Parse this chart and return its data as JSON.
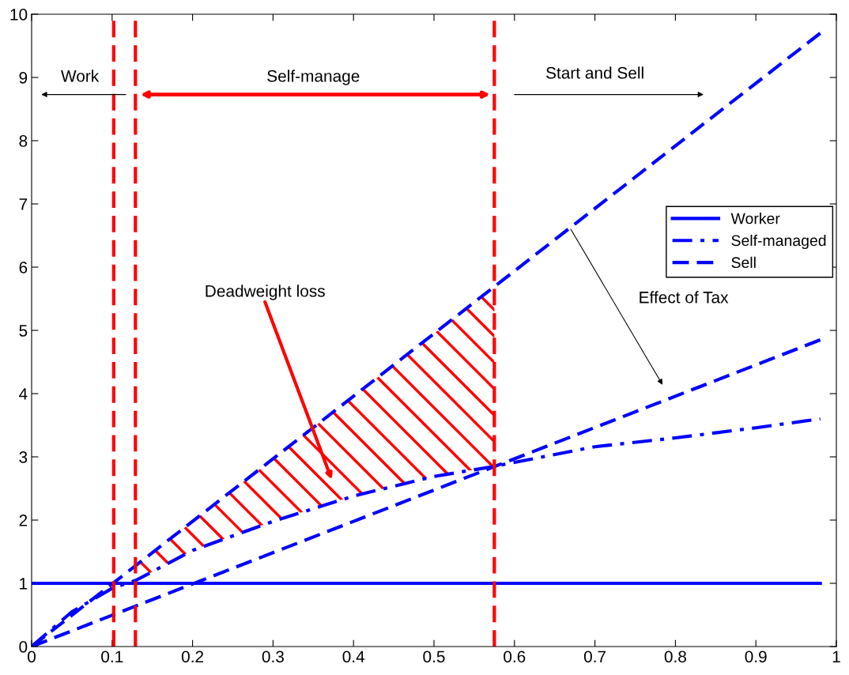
{
  "chart_data": {
    "type": "line",
    "xlim": [
      0,
      1
    ],
    "ylim": [
      0,
      10
    ],
    "xticks": [
      0,
      0.1,
      0.2,
      0.3,
      0.4,
      0.5,
      0.6,
      0.7,
      0.8,
      0.9,
      1
    ],
    "yticks": [
      0,
      1,
      2,
      3,
      4,
      5,
      6,
      7,
      8,
      9,
      10
    ],
    "grid": false,
    "legend": "right",
    "series": [
      {
        "name": "Worker",
        "color": "#0000ff",
        "line_style": "solid",
        "x": [
          0,
          0.98
        ],
        "values": [
          1,
          1
        ]
      },
      {
        "name": "Self-managed",
        "color": "#0000ff",
        "line_style": "dashdot",
        "x": [
          0,
          0.05,
          0.1,
          0.13,
          0.2,
          0.3,
          0.4,
          0.5,
          0.575,
          0.7,
          0.8,
          0.9,
          0.98
        ],
        "values": [
          0,
          0.55,
          0.92,
          1.05,
          1.52,
          1.98,
          2.38,
          2.69,
          2.85,
          3.16,
          3.3,
          3.46,
          3.6
        ]
      },
      {
        "name": "Sell",
        "color": "#0000ff",
        "line_style": "dashed",
        "x": [
          0,
          0.98
        ],
        "values": [
          0,
          9.7
        ]
      },
      {
        "color": "#0000ff",
        "line_style": "dashed",
        "x": [
          0,
          0.98
        ],
        "values": [
          0,
          4.85
        ]
      }
    ],
    "ref_lines": [
      {
        "axis": "x",
        "value": 0.102,
        "color": "#ff0000",
        "line_style": "dashed"
      },
      {
        "axis": "x",
        "value": 0.129,
        "color": "#ff0000",
        "line_style": "dashed"
      },
      {
        "axis": "x",
        "value": 0.575,
        "color": "#ff0000",
        "line_style": "dashed"
      }
    ],
    "annotations": [
      "Work",
      "Self-manage",
      "Start and Sell",
      "Deadweight loss",
      "Effect of Tax"
    ]
  }
}
